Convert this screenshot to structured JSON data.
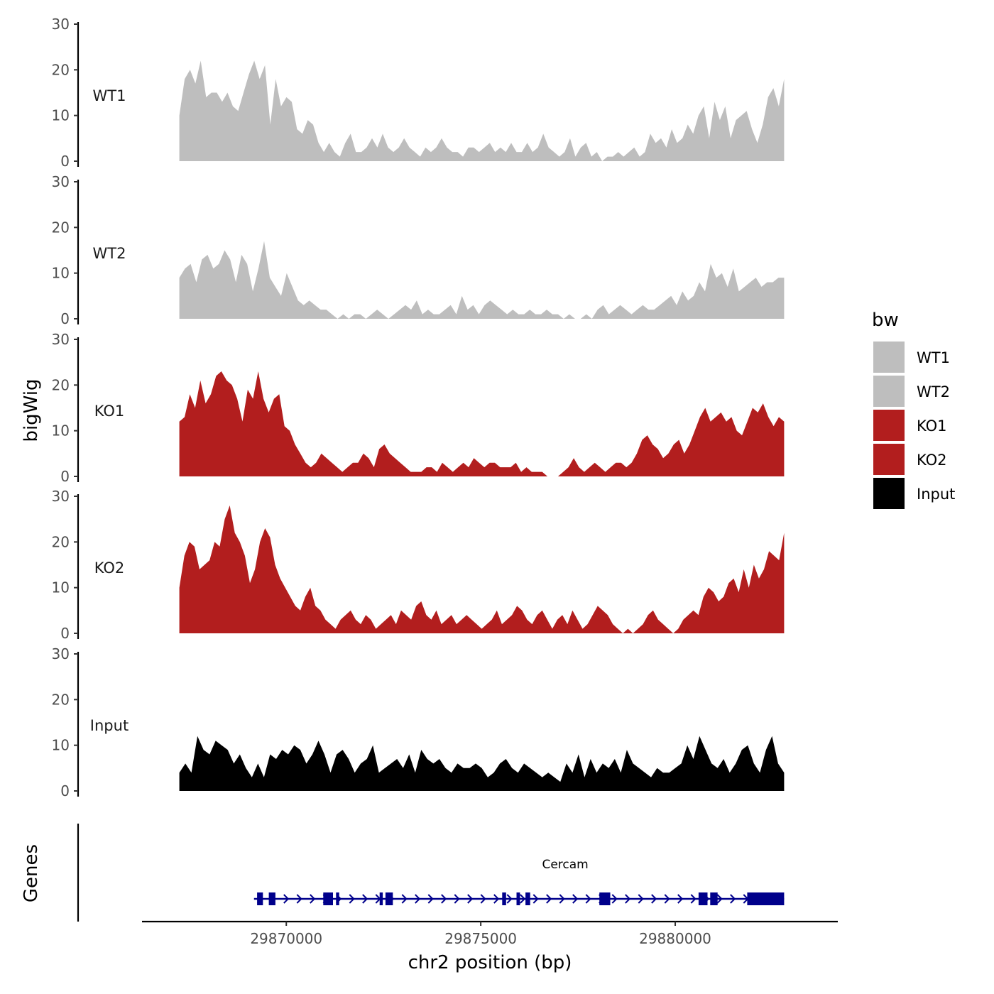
{
  "chart_data": {
    "type": "area",
    "ylabel": "bigWig",
    "xlabel": "chr2 position (bp)",
    "ylim": [
      0,
      30
    ],
    "yticks": [
      0,
      10,
      20,
      30
    ],
    "xlim": [
      29866290,
      29884180
    ],
    "xticks": [
      29870000,
      29875000,
      29880000
    ],
    "xtick_labels": [
      "29870000",
      "29875000",
      "29880000"
    ],
    "data_range": [
      29867250,
      29882800
    ],
    "legend": {
      "title": "bw",
      "position": "right",
      "entries": [
        {
          "label": "WT1",
          "color": "#bebebe"
        },
        {
          "label": "WT2",
          "color": "#bebebe"
        },
        {
          "label": "KO1",
          "color": "#b21e1e"
        },
        {
          "label": "KO2",
          "color": "#b21e1e"
        },
        {
          "label": "Input",
          "color": "#000000"
        }
      ]
    },
    "series": [
      {
        "name": "WT1",
        "color": "#bebebe",
        "values": [
          10,
          18,
          20,
          17,
          22,
          14,
          15,
          15,
          13,
          15,
          12,
          11,
          15,
          19,
          22,
          18,
          21,
          8,
          18,
          12,
          14,
          13,
          7,
          6,
          9,
          8,
          4,
          2,
          4,
          2,
          1,
          4,
          6,
          2,
          2,
          3,
          5,
          3,
          6,
          3,
          2,
          3,
          5,
          3,
          2,
          1,
          3,
          2,
          3,
          5,
          3,
          2,
          2,
          1,
          3,
          3,
          2,
          3,
          4,
          2,
          3,
          2,
          4,
          2,
          2,
          4,
          2,
          3,
          6,
          3,
          2,
          1,
          2,
          5,
          1,
          3,
          4,
          1,
          2,
          0,
          1,
          1,
          2,
          1,
          2,
          3,
          1,
          2,
          6,
          4,
          5,
          3,
          7,
          4,
          5,
          8,
          6,
          10,
          12,
          5,
          13,
          9,
          12,
          5,
          9,
          10,
          11,
          7,
          4,
          8,
          14,
          16,
          12,
          18
        ]
      },
      {
        "name": "WT2",
        "color": "#bebebe",
        "values": [
          9,
          11,
          12,
          8,
          13,
          14,
          11,
          12,
          15,
          13,
          8,
          14,
          12,
          6,
          11,
          17,
          9,
          7,
          5,
          10,
          7,
          4,
          3,
          4,
          3,
          2,
          2,
          1,
          0,
          1,
          0,
          1,
          1,
          0,
          1,
          2,
          1,
          0,
          1,
          2,
          3,
          2,
          4,
          1,
          2,
          1,
          1,
          2,
          3,
          1,
          5,
          2,
          3,
          1,
          3,
          4,
          3,
          2,
          1,
          2,
          1,
          1,
          2,
          1,
          1,
          2,
          1,
          1,
          0,
          1,
          0,
          0,
          1,
          0,
          2,
          3,
          1,
          2,
          3,
          2,
          1,
          2,
          3,
          2,
          2,
          3,
          4,
          5,
          3,
          6,
          4,
          5,
          8,
          6,
          12,
          9,
          10,
          7,
          11,
          6,
          7,
          8,
          9,
          7,
          8,
          8,
          9,
          9
        ]
      },
      {
        "name": "KO1",
        "color": "#b21e1e",
        "values": [
          12,
          13,
          18,
          15,
          21,
          16,
          18,
          22,
          23,
          21,
          20,
          17,
          12,
          19,
          17,
          23,
          17,
          14,
          17,
          18,
          11,
          10,
          7,
          5,
          3,
          2,
          3,
          5,
          4,
          3,
          2,
          1,
          2,
          3,
          3,
          5,
          4,
          2,
          6,
          7,
          5,
          4,
          3,
          2,
          1,
          1,
          1,
          2,
          2,
          1,
          3,
          2,
          1,
          2,
          3,
          2,
          4,
          3,
          2,
          3,
          3,
          2,
          2,
          2,
          3,
          1,
          2,
          1,
          1,
          1,
          0,
          0,
          0,
          1,
          2,
          4,
          2,
          1,
          2,
          3,
          2,
          1,
          2,
          3,
          3,
          2,
          3,
          5,
          8,
          9,
          7,
          6,
          4,
          5,
          7,
          8,
          5,
          7,
          10,
          13,
          15,
          12,
          13,
          14,
          12,
          13,
          10,
          9,
          12,
          15,
          14,
          16,
          13,
          11,
          13,
          12
        ]
      },
      {
        "name": "KO2",
        "color": "#b21e1e",
        "values": [
          10,
          17,
          20,
          19,
          14,
          15,
          16,
          20,
          19,
          25,
          28,
          22,
          20,
          17,
          11,
          14,
          20,
          23,
          21,
          15,
          12,
          10,
          8,
          6,
          5,
          8,
          10,
          6,
          5,
          3,
          2,
          1,
          3,
          4,
          5,
          3,
          2,
          4,
          3,
          1,
          2,
          3,
          4,
          2,
          5,
          4,
          3,
          6,
          7,
          4,
          3,
          5,
          2,
          3,
          4,
          2,
          3,
          4,
          3,
          2,
          1,
          2,
          3,
          5,
          2,
          3,
          4,
          6,
          5,
          3,
          2,
          4,
          5,
          3,
          1,
          3,
          4,
          2,
          5,
          3,
          1,
          2,
          4,
          6,
          5,
          4,
          2,
          1,
          0,
          1,
          0,
          1,
          2,
          4,
          5,
          3,
          2,
          1,
          0,
          1,
          3,
          4,
          5,
          4,
          8,
          10,
          9,
          7,
          8,
          11,
          12,
          9,
          14,
          10,
          15,
          12,
          14,
          18,
          17,
          16,
          22
        ]
      },
      {
        "name": "Input",
        "color": "#000000",
        "values": [
          4,
          6,
          4,
          12,
          9,
          8,
          11,
          10,
          9,
          6,
          8,
          5,
          3,
          6,
          3,
          8,
          7,
          9,
          8,
          10,
          9,
          6,
          8,
          11,
          8,
          4,
          8,
          9,
          7,
          4,
          6,
          7,
          10,
          4,
          5,
          6,
          7,
          5,
          8,
          4,
          9,
          7,
          6,
          7,
          5,
          4,
          6,
          5,
          5,
          6,
          5,
          3,
          4,
          6,
          7,
          5,
          4,
          6,
          5,
          4,
          3,
          4,
          3,
          2,
          6,
          4,
          8,
          3,
          7,
          4,
          6,
          5,
          7,
          4,
          9,
          6,
          5,
          4,
          3,
          5,
          4,
          4,
          5,
          6,
          10,
          7,
          12,
          9,
          6,
          5,
          7,
          4,
          6,
          9,
          10,
          6,
          4,
          9,
          12,
          6,
          4
        ]
      }
    ],
    "tracks_label": "Genes",
    "gene": {
      "name": "Cercam",
      "start": 29869170,
      "end": 29882800,
      "strand": "+",
      "color": "#00008b",
      "exons": [
        [
          29869250,
          29869400
        ],
        [
          29869550,
          29869720
        ],
        [
          29870950,
          29871200
        ],
        [
          29871280,
          29871360
        ],
        [
          29872400,
          29872480
        ],
        [
          29872550,
          29872740
        ],
        [
          29875550,
          29875650
        ],
        [
          29875920,
          29876010
        ],
        [
          29876150,
          29876270
        ],
        [
          29878050,
          29878330
        ],
        [
          29880600,
          29880830
        ],
        [
          29880900,
          29881090
        ],
        [
          29881850,
          29882800
        ]
      ]
    }
  }
}
